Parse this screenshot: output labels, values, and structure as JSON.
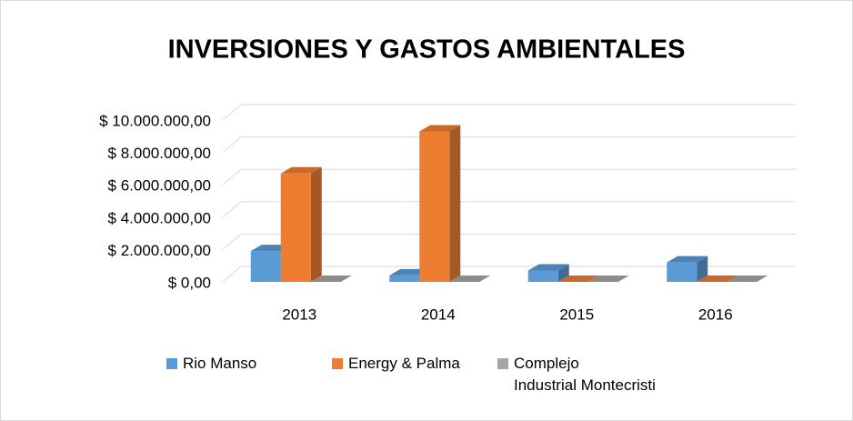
{
  "chart_data": {
    "type": "bar3d",
    "title": "INVERSIONES Y GASTOS AMBIENTALES",
    "categories": [
      "2013",
      "2014",
      "2015",
      "2016"
    ],
    "series": [
      {
        "name": "Rio Manso",
        "color": "#5b9bd5",
        "values": [
          1900000,
          400000,
          700000,
          1200000
        ]
      },
      {
        "name": "Energy & Palma",
        "color": "#ed7d31",
        "values": [
          6700000,
          9300000,
          0,
          0
        ]
      },
      {
        "name": "Complejo Industrial Montecristi",
        "color": "#a5a5a5",
        "values": [
          0,
          0,
          0,
          0
        ]
      }
    ],
    "ylim": [
      0,
      10000000
    ],
    "yticks": [
      {
        "value": 0,
        "label": "$ 0,00"
      },
      {
        "value": 2000000,
        "label": "$ 2.000.000,00"
      },
      {
        "value": 4000000,
        "label": "$ 4.000.000,00"
      },
      {
        "value": 6000000,
        "label": "$ 6.000.000,00"
      },
      {
        "value": 8000000,
        "label": "$ 8.000.000,00"
      },
      {
        "value": 10000000,
        "label": "$ 10.000.000,00"
      }
    ],
    "grid": true,
    "legend": "bottom"
  }
}
